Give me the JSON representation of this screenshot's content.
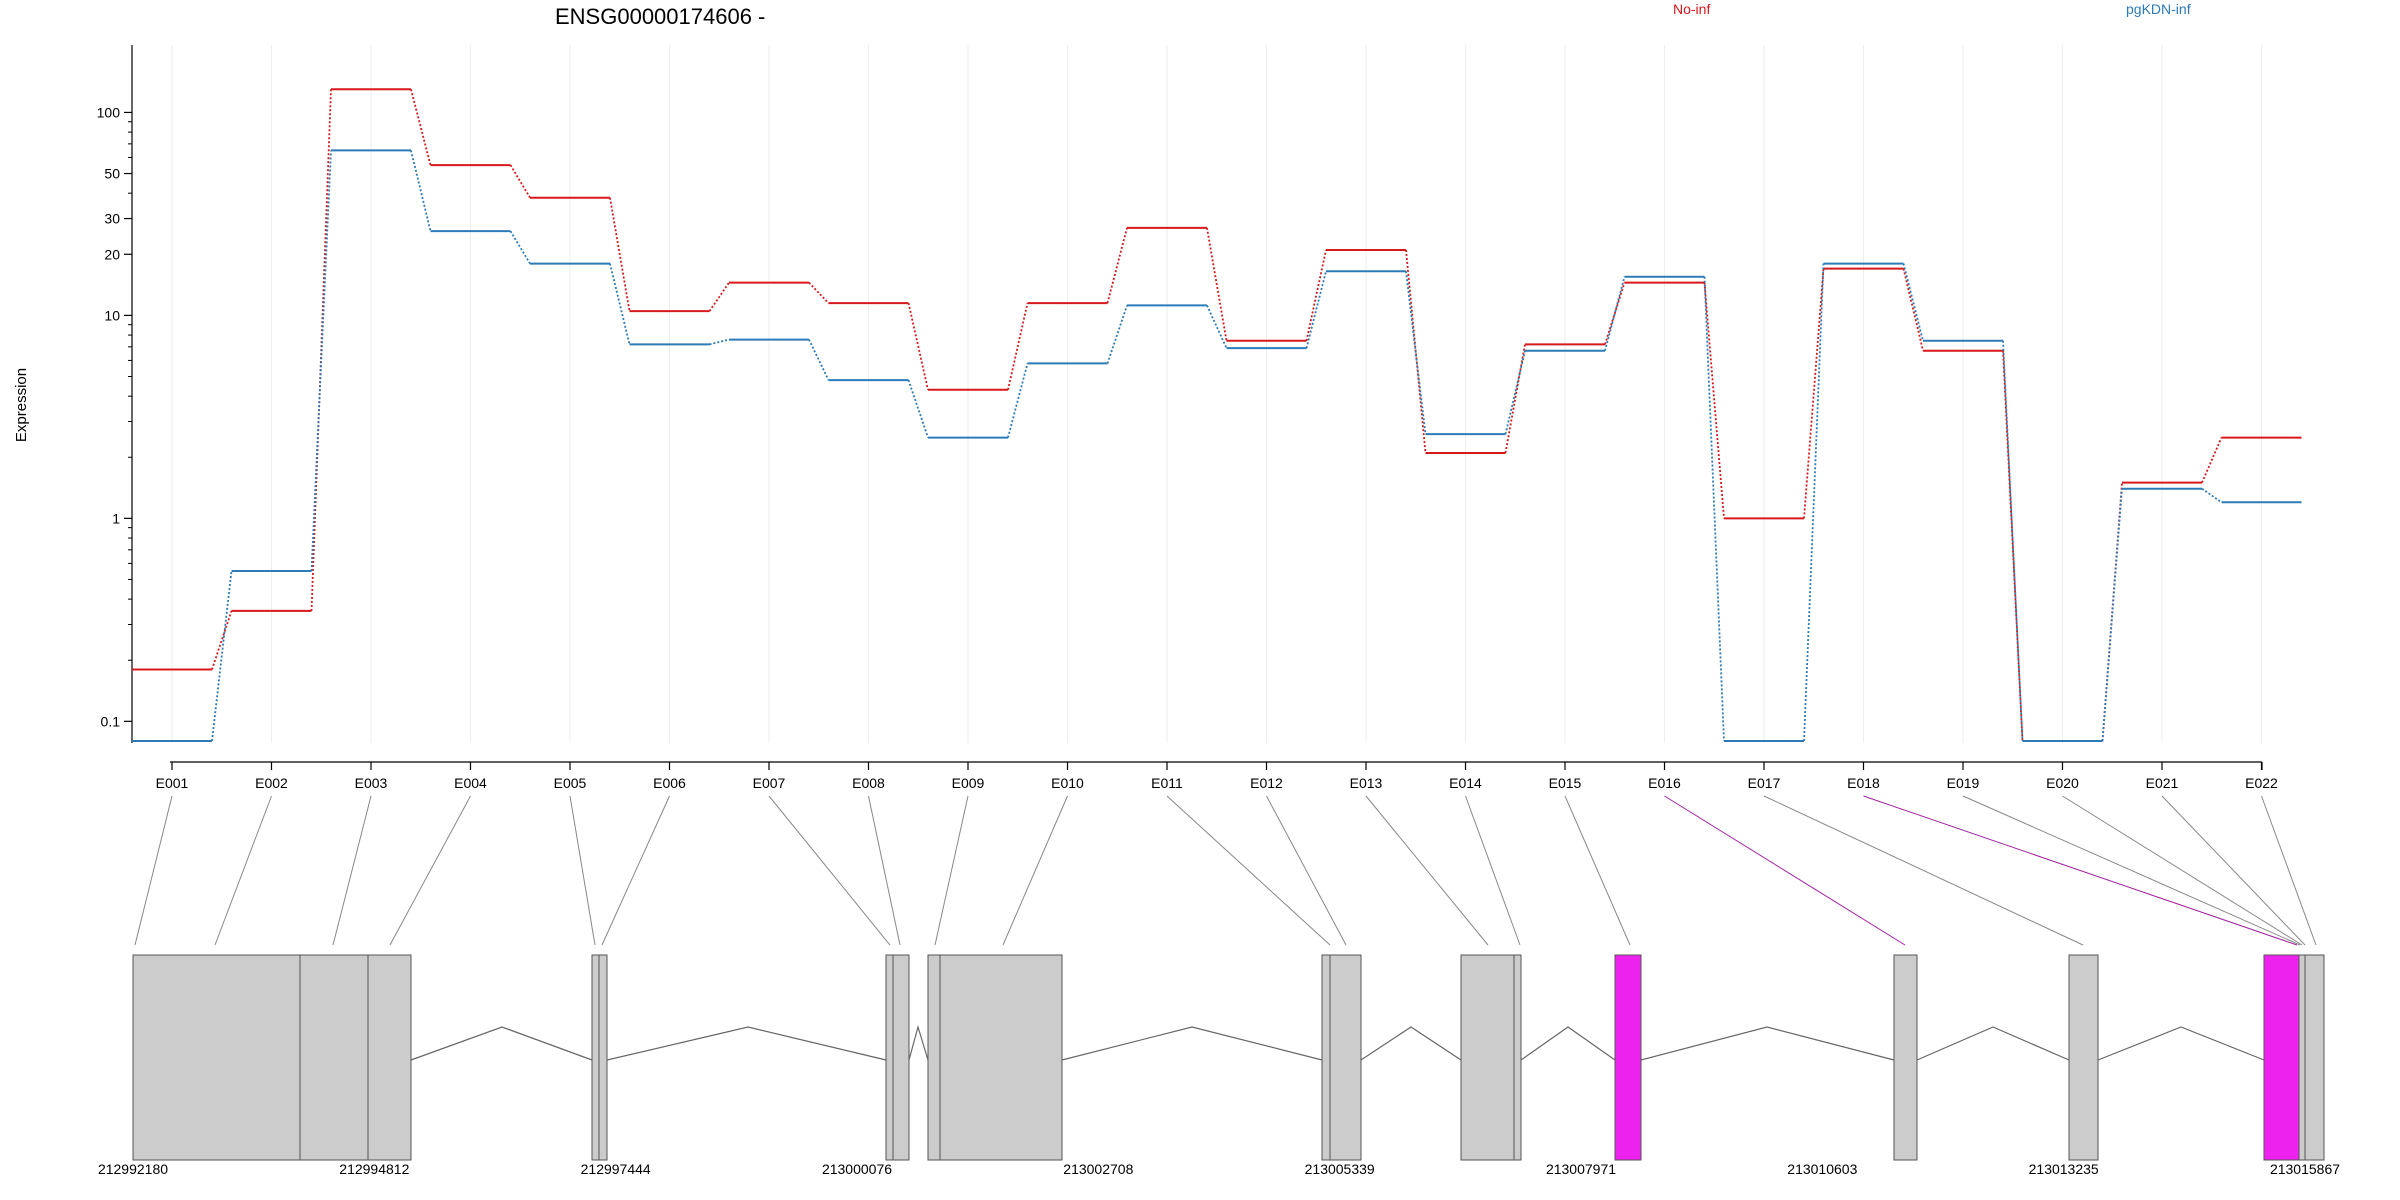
{
  "chart_data": {
    "type": "line",
    "title": "ENSG00000174606 -",
    "ylabel": "Expression",
    "yscale": "log",
    "ylim": [
      0.08,
      160
    ],
    "yticks": [
      0.1,
      1,
      10,
      20,
      30,
      50,
      100
    ],
    "categories": [
      "E001",
      "E002",
      "E003",
      "E004",
      "E005",
      "E006",
      "E007",
      "E008",
      "E009",
      "E010",
      "E011",
      "E012",
      "E013",
      "E014",
      "E015",
      "E016",
      "E017",
      "E018",
      "E019",
      "E020",
      "E021",
      "E022"
    ],
    "series": [
      {
        "name": "No-inf",
        "color": "#d7191c",
        "values": [
          0.18,
          0.35,
          130,
          55,
          38,
          10.5,
          14.5,
          11.5,
          4.3,
          11.5,
          27,
          7.5,
          21,
          2.1,
          7.2,
          14.5,
          1.0,
          17,
          6.7,
          0.08,
          1.5,
          2.5
        ]
      },
      {
        "name": "pgKDN-inf",
        "color": "#2c7bb6",
        "values": [
          0.08,
          0.55,
          65,
          26,
          18,
          7.2,
          7.6,
          4.8,
          2.5,
          5.8,
          11.2,
          6.9,
          16.5,
          2.6,
          6.7,
          15.5,
          0.08,
          18,
          7.5,
          0.08,
          1.4,
          1.2
        ]
      }
    ],
    "genome": {
      "ticks": [
        "212992180",
        "212994812",
        "212997444",
        "213000076",
        "213002708",
        "213005339",
        "213007971",
        "213010603",
        "213013235",
        "213015867"
      ],
      "highlight_color": "#ee22ee",
      "exon_color": "#cccccc",
      "highlighted_exons": [
        "E016",
        "E018"
      ]
    },
    "grid": true,
    "legend": "top"
  }
}
